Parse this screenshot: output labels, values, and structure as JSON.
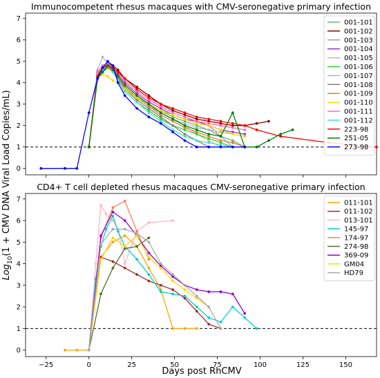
{
  "figure": {
    "ylabel_prefix": "Log",
    "ylabel_sub": "10",
    "ylabel_suffix": "(1 + CMV DNA Viral Load Copies/mL)",
    "xlabel": "Days post RhCMV"
  },
  "chart_data": [
    {
      "type": "line",
      "title": "Immunocompetent rhesus macaques with CMV-seronegative primary infection",
      "xlim": [
        -37,
        168
      ],
      "ylim": [
        -0.3,
        7.25
      ],
      "yticks": [
        0,
        1,
        2,
        3,
        4,
        5,
        6,
        7
      ],
      "threshold": 1,
      "legend_position": "right",
      "series": [
        {
          "name": "001-101",
          "color": "#66bb66",
          "x": [
            0,
            5,
            8,
            11,
            14,
            17,
            21,
            25,
            28,
            35,
            42,
            49,
            56,
            63,
            70,
            77,
            84,
            91
          ],
          "y": [
            1.0,
            4.3,
            4.6,
            4.8,
            4.7,
            4.3,
            3.8,
            3.5,
            3.3,
            3.0,
            2.7,
            2.4,
            2.2,
            2.0,
            1.8,
            1.5,
            1.3,
            1.0
          ]
        },
        {
          "name": "001-102",
          "color": "#8b0000",
          "x": [
            0,
            5,
            8,
            11,
            14,
            17,
            21,
            28,
            35,
            42,
            49,
            56,
            63,
            70,
            77,
            84,
            91,
            98,
            105
          ],
          "y": [
            1.0,
            4.4,
            4.7,
            4.9,
            4.8,
            4.6,
            4.2,
            3.8,
            3.4,
            3.0,
            2.7,
            2.5,
            2.3,
            2.2,
            2.1,
            2.0,
            2.0,
            2.1,
            2.2
          ]
        },
        {
          "name": "001-103",
          "color": "#bc8f8f",
          "x": [
            0,
            5,
            8,
            11,
            14,
            17,
            21,
            28,
            35,
            42,
            49,
            56,
            63,
            70,
            77,
            84
          ],
          "y": [
            1.0,
            4.5,
            4.8,
            4.9,
            4.7,
            4.3,
            3.9,
            3.4,
            3.0,
            2.7,
            2.5,
            2.3,
            2.1,
            2.0,
            1.5,
            1.0
          ]
        },
        {
          "name": "001-104",
          "color": "#9932cc",
          "x": [
            0,
            5,
            8,
            11,
            14,
            17,
            21,
            28,
            35,
            42,
            49,
            56,
            63,
            70,
            77,
            84,
            91
          ],
          "y": [
            1.0,
            4.2,
            4.5,
            4.7,
            4.8,
            4.4,
            4.0,
            3.5,
            3.1,
            2.8,
            2.5,
            2.3,
            2.2,
            2.0,
            1.8,
            1.7,
            1.6
          ]
        },
        {
          "name": "001-105",
          "color": "#d2b48c",
          "x": [
            0,
            5,
            8,
            11,
            14,
            17,
            21,
            28,
            35,
            42,
            49,
            56,
            63,
            70,
            77
          ],
          "y": [
            1.0,
            4.1,
            4.6,
            4.8,
            4.6,
            4.2,
            3.8,
            3.3,
            2.9,
            2.6,
            2.3,
            2.0,
            1.6,
            1.3,
            1.0
          ]
        },
        {
          "name": "001-106",
          "color": "#32cd32",
          "x": [
            0,
            5,
            8,
            11,
            14,
            17,
            21,
            28,
            35,
            42,
            49,
            56,
            63,
            70,
            77,
            84
          ],
          "y": [
            1.0,
            4.4,
            4.7,
            4.9,
            4.6,
            4.1,
            3.6,
            3.1,
            2.7,
            2.3,
            2.0,
            1.8,
            1.6,
            1.4,
            1.2,
            1.0
          ]
        },
        {
          "name": "001-107",
          "color": "#aab4cc",
          "x": [
            0,
            5,
            8,
            11,
            14,
            17,
            21,
            28,
            35,
            42,
            49,
            56,
            63,
            70,
            77,
            84,
            91
          ],
          "y": [
            1.0,
            4.6,
            5.2,
            4.9,
            4.6,
            4.3,
            3.9,
            3.4,
            3.0,
            2.6,
            2.3,
            2.1,
            1.9,
            1.8,
            1.7,
            1.6,
            1.5
          ]
        },
        {
          "name": "001-108",
          "color": "#808080",
          "x": [
            0,
            5,
            8,
            11,
            14,
            17,
            21,
            28,
            35,
            42,
            49,
            56,
            63,
            70
          ],
          "y": [
            1.0,
            4.3,
            4.5,
            4.8,
            4.6,
            4.2,
            3.7,
            3.2,
            2.8,
            2.4,
            2.0,
            1.6,
            1.3,
            1.0
          ]
        },
        {
          "name": "001-109",
          "color": "#cd853f",
          "x": [
            0,
            5,
            8,
            11,
            14,
            17,
            21,
            28,
            35,
            42,
            49,
            56,
            63,
            70,
            77,
            84,
            91
          ],
          "y": [
            1.0,
            4.4,
            4.6,
            4.7,
            4.5,
            4.2,
            3.8,
            3.3,
            2.9,
            2.5,
            2.2,
            1.9,
            1.7,
            1.5,
            1.3,
            1.2,
            1.0
          ]
        },
        {
          "name": "001-110",
          "color": "#ffd700",
          "x": [
            0,
            5,
            8,
            11,
            14,
            17,
            21,
            28,
            35,
            42,
            49,
            56,
            63,
            70,
            77,
            84,
            91
          ],
          "y": [
            1.0,
            4.2,
            4.4,
            4.3,
            4.1,
            4.0,
            3.7,
            3.3,
            3.0,
            2.7,
            2.5,
            2.3,
            2.1,
            2.0,
            1.8,
            1.6,
            1.5
          ]
        },
        {
          "name": "001-111",
          "color": "#ff69b4",
          "x": [
            0,
            5,
            8,
            11,
            14,
            17,
            21,
            28,
            35,
            42,
            49,
            56,
            63,
            70,
            77,
            84,
            91
          ],
          "y": [
            1.0,
            4.5,
            4.8,
            4.9,
            4.7,
            4.5,
            4.1,
            3.6,
            3.2,
            2.9,
            2.6,
            2.4,
            2.2,
            2.1,
            2.0,
            1.9,
            1.8
          ]
        },
        {
          "name": "001-112",
          "color": "#40e0d0",
          "x": [
            0,
            5,
            8,
            11,
            14,
            17,
            21,
            28,
            35,
            42,
            49,
            56,
            63,
            70,
            77,
            84,
            91,
            98
          ],
          "y": [
            1.0,
            4.3,
            4.6,
            4.8,
            4.5,
            4.1,
            3.6,
            3.1,
            2.6,
            2.2,
            1.8,
            1.5,
            1.3,
            1.2,
            1.1,
            1.0,
            1.0,
            1.0
          ]
        },
        {
          "name": "223-98",
          "color": "#ff0000",
          "x": [
            0,
            5,
            8,
            11,
            14,
            17,
            21,
            28,
            35,
            42,
            49,
            56,
            63,
            70,
            77,
            84,
            91,
            98,
            112,
            140,
            168
          ],
          "y": [
            1.0,
            4.3,
            4.7,
            4.8,
            4.7,
            4.5,
            4.2,
            3.7,
            3.3,
            3.0,
            2.8,
            2.6,
            2.4,
            2.3,
            2.2,
            2.1,
            2.0,
            1.8,
            1.5,
            1.2,
            1.0
          ]
        },
        {
          "name": "251-05",
          "color": "#008000",
          "x": [
            0,
            5,
            8,
            11,
            14,
            17,
            21,
            28,
            35,
            42,
            49,
            56,
            63,
            70,
            77,
            84,
            91,
            98,
            105,
            112,
            119
          ],
          "y": [
            1.0,
            4.2,
            4.5,
            4.8,
            4.6,
            4.3,
            3.9,
            3.4,
            3.0,
            2.6,
            2.3,
            2.0,
            1.8,
            1.6,
            1.5,
            2.6,
            1.0,
            1.0,
            1.3,
            1.6,
            1.8
          ]
        },
        {
          "name": "273-98",
          "color": "#0000ff",
          "x": [
            -28,
            -14,
            -7,
            0,
            5,
            8,
            11,
            14,
            17,
            21,
            28,
            35,
            42,
            49,
            56,
            63,
            70,
            77,
            84,
            91
          ],
          "y": [
            0.0,
            0.0,
            0.0,
            2.6,
            4.2,
            4.7,
            5.0,
            4.8,
            4.0,
            3.4,
            2.8,
            2.4,
            2.1,
            1.7,
            1.3,
            1.0,
            1.0,
            1.0,
            1.0,
            1.0
          ]
        }
      ]
    },
    {
      "type": "line",
      "title": "CD4+ T cell depleted rhesus macaques CMV-seronegative primary infection",
      "xlim": [
        -37,
        168
      ],
      "ylim": [
        -0.3,
        7.25
      ],
      "yticks": [
        0,
        1,
        2,
        3,
        4,
        5,
        6,
        7
      ],
      "xticks": [
        -25,
        0,
        25,
        50,
        75,
        100,
        125,
        150
      ],
      "threshold": 1,
      "legend_position": "right",
      "series": [
        {
          "name": "011-101",
          "color": "#ffa500",
          "x": [
            -14,
            -7,
            0,
            7,
            14,
            21,
            28,
            35,
            42,
            49,
            56,
            63
          ],
          "y": [
            0.0,
            0.0,
            0.0,
            4.3,
            5.0,
            5.3,
            4.8,
            3.8,
            2.8,
            1.0,
            1.0,
            1.0
          ]
        },
        {
          "name": "011-102",
          "color": "#a52a2a",
          "x": [
            0,
            7,
            14,
            21,
            28,
            35,
            42,
            49,
            56,
            63,
            70,
            77
          ],
          "y": [
            0.0,
            4.3,
            4.1,
            3.8,
            3.5,
            3.2,
            3.0,
            2.8,
            2.4,
            1.8,
            1.2,
            1.0
          ]
        },
        {
          "name": "013-101",
          "color": "#ffb6c1",
          "x": [
            0,
            4,
            7,
            10,
            14,
            17,
            21,
            28,
            35,
            49
          ],
          "y": [
            0.0,
            4.0,
            6.7,
            6.3,
            6.0,
            5.6,
            4.0,
            5.5,
            5.9,
            6.0
          ]
        },
        {
          "name": "145-97",
          "color": "#00ced1",
          "x": [
            0,
            4,
            7,
            10,
            14,
            17,
            21,
            28,
            35,
            42,
            49,
            56,
            63,
            70,
            77,
            84,
            91,
            98
          ],
          "y": [
            0.0,
            3.3,
            4.8,
            5.6,
            6.2,
            5.5,
            4.8,
            4.2,
            3.5,
            2.7,
            2.6,
            2.5,
            2.0,
            1.5,
            1.3,
            2.0,
            1.5,
            1.0
          ]
        },
        {
          "name": "174-97",
          "color": "#ff7f50",
          "x": [
            0,
            7,
            14,
            21,
            28,
            35
          ],
          "y": [
            0.0,
            5.2,
            6.6,
            6.9,
            5.5,
            4.2
          ]
        },
        {
          "name": "274-98",
          "color": "#556b2f",
          "x": [
            0,
            7,
            14,
            21,
            28,
            35
          ],
          "y": [
            0.0,
            2.6,
            3.8,
            4.7,
            4.8,
            5.2
          ]
        },
        {
          "name": "369-09",
          "color": "#9400d3",
          "x": [
            0,
            7,
            14,
            21,
            28,
            35,
            42,
            49,
            56,
            63,
            70,
            77,
            84,
            91
          ],
          "y": [
            0.0,
            5.3,
            6.4,
            6.0,
            5.3,
            4.5,
            3.9,
            3.4,
            3.0,
            2.8,
            2.7,
            2.7,
            2.6,
            1.7
          ]
        },
        {
          "name": "GM04",
          "color": "#ffd700",
          "x": [
            0,
            7,
            14,
            21,
            28,
            35,
            42,
            49,
            56,
            63,
            70
          ],
          "y": [
            0.0,
            4.2,
            5.2,
            4.8,
            5.3,
            4.3,
            3.8,
            3.2,
            2.8,
            2.4,
            2.0
          ]
        },
        {
          "name": "HD79",
          "color": "#a9a9a9",
          "x": [
            0,
            7,
            14,
            21,
            28,
            35,
            42,
            49,
            56,
            63,
            70,
            77
          ],
          "y": [
            0.0,
            4.9,
            5.6,
            5.6,
            5.4,
            5.0,
            4.0,
            3.5,
            3.0,
            2.5,
            2.0,
            1.0
          ]
        }
      ]
    }
  ]
}
